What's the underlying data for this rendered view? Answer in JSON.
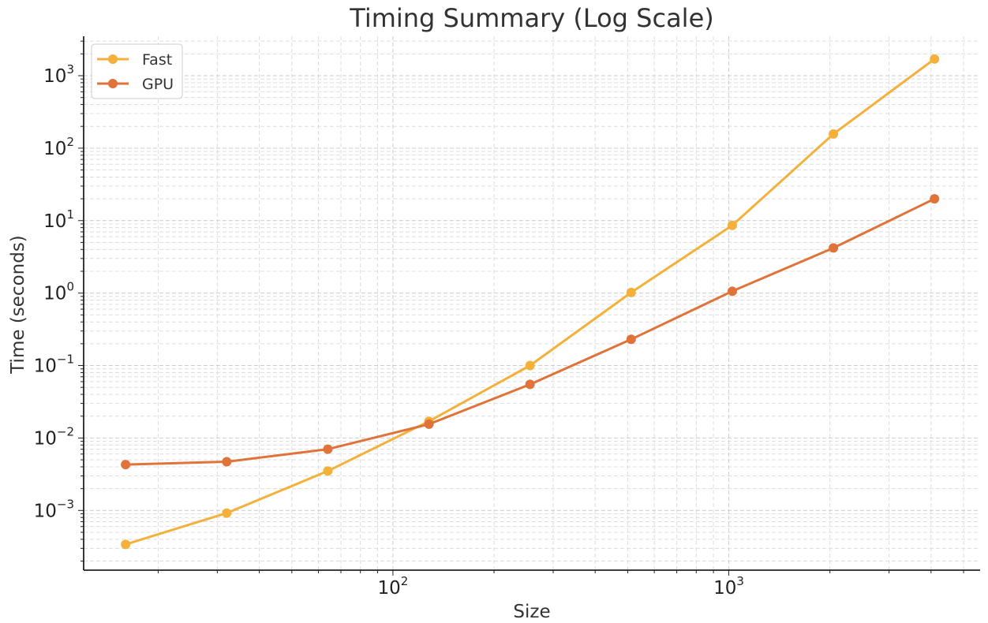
{
  "chart_data": {
    "type": "line",
    "title": "Timing Summary (Log Scale)",
    "xlabel": "Size",
    "ylabel": "Time (seconds)",
    "xscale": "log",
    "yscale": "log",
    "xlim": [
      12,
      5600
    ],
    "ylim": [
      0.00015,
      3500
    ],
    "grid": true,
    "legend": "top-left",
    "x": [
      16,
      32,
      64,
      128,
      256,
      512,
      1024,
      2048,
      4096
    ],
    "series": [
      {
        "name": "Fast",
        "color": "#f3b13b",
        "values": [
          0.00034,
          0.00092,
          0.0035,
          0.017,
          0.1,
          1.02,
          8.6,
          157,
          1700
        ]
      },
      {
        "name": "GPU",
        "color": "#e07339",
        "values": [
          0.0043,
          0.0047,
          0.007,
          0.0155,
          0.055,
          0.23,
          1.06,
          4.2,
          20
        ]
      }
    ],
    "x_ticks": [
      {
        "value": 100,
        "base": "10",
        "exp": "2"
      },
      {
        "value": 1000,
        "base": "10",
        "exp": "3"
      }
    ],
    "y_ticks": [
      {
        "value": 0.001,
        "base": "10",
        "exp": "−3"
      },
      {
        "value": 0.01,
        "base": "10",
        "exp": "−2"
      },
      {
        "value": 0.1,
        "base": "10",
        "exp": "−1"
      },
      {
        "value": 1,
        "base": "10",
        "exp": "0"
      },
      {
        "value": 10,
        "base": "10",
        "exp": "1"
      },
      {
        "value": 100,
        "base": "10",
        "exp": "2"
      },
      {
        "value": 1000,
        "base": "10",
        "exp": "3"
      }
    ]
  }
}
